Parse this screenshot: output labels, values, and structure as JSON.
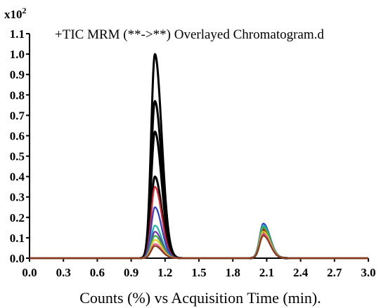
{
  "chart_data": {
    "type": "line",
    "title": "+TIC MRM (**->**) Overlayed Chromatogram.d",
    "xlabel": "Counts (%) vs Acquisition Time (min).",
    "ylabel": "",
    "y_multiplier_base": "x10",
    "y_multiplier_exp": "2",
    "xlim": [
      0.0,
      3.0
    ],
    "ylim": [
      0.0,
      1.1
    ],
    "x_ticks": [
      "0.0",
      "0.3",
      "0.6",
      "0.9",
      "1.2",
      "1.5",
      "1.8",
      "2.1",
      "2.4",
      "2.7",
      "3.0"
    ],
    "y_ticks": [
      "0.0",
      "0.1",
      "0.2",
      "0.3",
      "0.4",
      "0.5",
      "0.6",
      "0.7",
      "0.8",
      "0.9",
      "1.0",
      "1.1"
    ],
    "grid": false,
    "legend": "none",
    "series": [
      {
        "color": "#000000",
        "peaks": [
          {
            "center": 1.11,
            "height": 1.0
          },
          {
            "center": 2.07,
            "height": 0.15
          }
        ]
      },
      {
        "color": "#000000",
        "peaks": [
          {
            "center": 1.11,
            "height": 0.77
          },
          {
            "center": 2.07,
            "height": 0.14
          }
        ]
      },
      {
        "color": "#000000",
        "peaks": [
          {
            "center": 1.11,
            "height": 0.62
          },
          {
            "center": 2.07,
            "height": 0.13
          }
        ]
      },
      {
        "color": "#000000",
        "peaks": [
          {
            "center": 1.11,
            "height": 0.4
          },
          {
            "center": 2.07,
            "height": 0.12
          }
        ]
      },
      {
        "color": "#e0202a",
        "peaks": [
          {
            "center": 1.11,
            "height": 0.35
          },
          {
            "center": 2.07,
            "height": 0.14
          }
        ]
      },
      {
        "color": "#2a3fd0",
        "peaks": [
          {
            "center": 1.11,
            "height": 0.25
          },
          {
            "center": 2.07,
            "height": 0.17
          }
        ]
      },
      {
        "color": "#1fb5a8",
        "peaks": [
          {
            "center": 1.11,
            "height": 0.16
          },
          {
            "center": 2.07,
            "height": 0.16
          }
        ]
      },
      {
        "color": "#7a2fb0",
        "peaks": [
          {
            "center": 1.11,
            "height": 0.13
          },
          {
            "center": 2.07,
            "height": 0.15
          }
        ]
      },
      {
        "color": "#3cb43c",
        "peaks": [
          {
            "center": 1.11,
            "height": 0.11
          },
          {
            "center": 2.07,
            "height": 0.15
          }
        ]
      },
      {
        "color": "#e8d020",
        "peaks": [
          {
            "center": 1.11,
            "height": 0.09
          },
          {
            "center": 2.07,
            "height": 0.13
          }
        ]
      },
      {
        "color": "#e85a9a",
        "peaks": [
          {
            "center": 1.11,
            "height": 0.07
          },
          {
            "center": 2.07,
            "height": 0.12
          }
        ]
      },
      {
        "color": "#8a3a1a",
        "peaks": [
          {
            "center": 1.11,
            "height": 0.06
          },
          {
            "center": 2.07,
            "height": 0.11
          }
        ]
      }
    ]
  }
}
